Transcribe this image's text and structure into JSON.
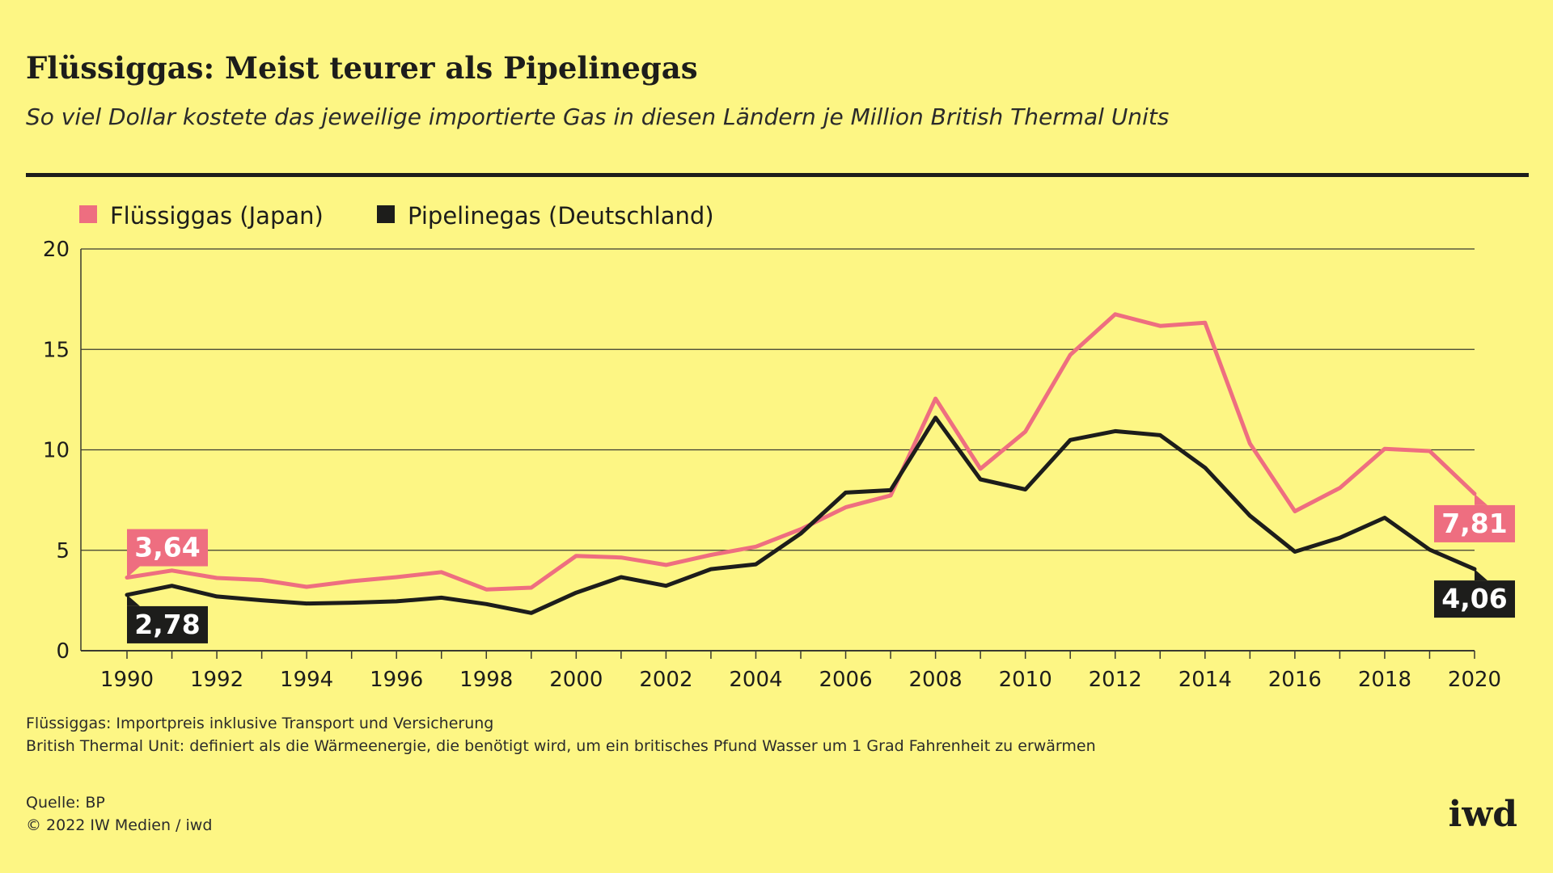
{
  "header": {
    "title": "Flüssiggas: Meist teurer als Pipelinegas",
    "subtitle": "So viel Dollar kostete das jeweilige importierte Gas in diesen Ländern je Million British Thermal Units"
  },
  "footer": {
    "note1": "Flüssiggas: Importpreis inklusive Transport und Versicherung",
    "note2": "British Thermal Unit: definiert als die Wärmeenergie, die benötigt wird, um ein britisches Pfund Wasser um 1 Grad Fahrenheit zu erwärmen",
    "source": "Quelle: BP",
    "copyright": "© 2022 IW Medien / iwd",
    "logo": "iwd"
  },
  "chart_data": {
    "type": "line",
    "x": [
      1990,
      1991,
      1992,
      1993,
      1994,
      1995,
      1996,
      1997,
      1998,
      1999,
      2000,
      2001,
      2002,
      2003,
      2004,
      2005,
      2006,
      2007,
      2008,
      2009,
      2010,
      2011,
      2012,
      2013,
      2014,
      2015,
      2016,
      2017,
      2018,
      2019,
      2020
    ],
    "xticks": [
      "1990",
      "1992",
      "1994",
      "1996",
      "1998",
      "2000",
      "2002",
      "2004",
      "2006",
      "2008",
      "2010",
      "2012",
      "2014",
      "2016",
      "2018",
      "2020"
    ],
    "yticks": [
      "0",
      "5",
      "10",
      "15",
      "20"
    ],
    "ylim": [
      0,
      20
    ],
    "xlim": [
      1990,
      2020
    ],
    "grid": true,
    "legend_position": "top-left",
    "series": [
      {
        "name": "Flüssiggas (Japan)",
        "color": "#ee6e80",
        "values": [
          3.64,
          3.99,
          3.62,
          3.52,
          3.18,
          3.46,
          3.66,
          3.91,
          3.05,
          3.14,
          4.72,
          4.64,
          4.27,
          4.77,
          5.18,
          6.05,
          7.14,
          7.73,
          12.55,
          9.06,
          10.91,
          14.73,
          16.75,
          16.17,
          16.33,
          10.31,
          6.94,
          8.1,
          10.05,
          9.94,
          7.81
        ],
        "start_label": "3,64",
        "end_label": "7,81"
      },
      {
        "name": "Pipelinegas (Deutschland)",
        "color": "#1d1d1b",
        "values": [
          2.78,
          3.23,
          2.7,
          2.51,
          2.35,
          2.39,
          2.46,
          2.64,
          2.32,
          1.88,
          2.89,
          3.66,
          3.23,
          4.06,
          4.3,
          5.83,
          7.87,
          7.99,
          11.6,
          8.53,
          8.03,
          10.49,
          10.93,
          10.73,
          9.11,
          6.72,
          4.93,
          5.62,
          6.62,
          5.03,
          4.06
        ],
        "start_label": "2,78",
        "end_label": "4,06"
      }
    ]
  }
}
